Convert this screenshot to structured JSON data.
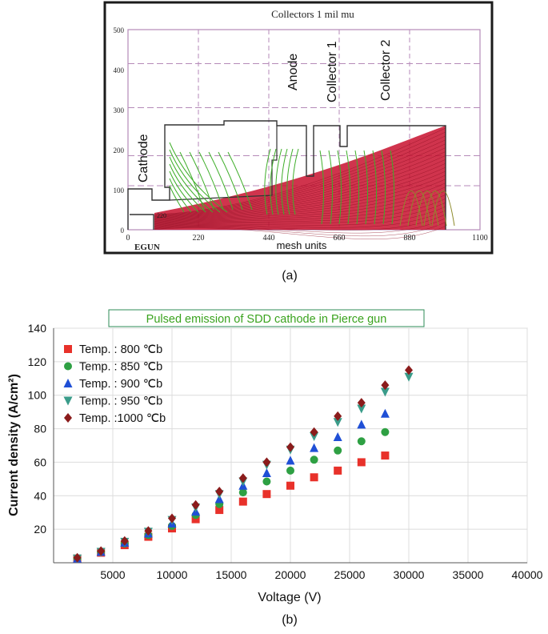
{
  "panel_a": {
    "title": "Collectors 1 mil mu",
    "panel_label": "(a)",
    "program_label": "EGUN",
    "xlabel": "mesh units",
    "x_ticks": [
      "0",
      "220",
      "440",
      "660",
      "880",
      "1100"
    ],
    "y_ticks": [
      "0",
      "100",
      "200",
      "300",
      "400",
      "500"
    ],
    "region_labels": {
      "cathode": "Cathode",
      "anode": "Anode",
      "collector1": "Collector 1",
      "collector2": "Collector 2"
    },
    "inner_marker": "220",
    "colors": {
      "beam": "#c8102e",
      "equipotential": "#3fae2a",
      "grid": "#b58ab8",
      "frame": "#222222"
    }
  },
  "panel_b": {
    "panel_label": "(b)",
    "legend_box_color": "#2e8b57",
    "title_color": "#3aa31e"
  },
  "chart_data": {
    "type": "scatter",
    "title": "Pulsed emission of SDD cathode in Pierce gun",
    "xlabel": "Voltage (V)",
    "ylabel": "Current density (A/cm²)",
    "xlim": [
      0,
      40000
    ],
    "ylim": [
      0,
      140
    ],
    "x_ticks": [
      5000,
      10000,
      15000,
      20000,
      25000,
      30000,
      35000,
      40000
    ],
    "y_ticks": [
      20,
      40,
      60,
      80,
      100,
      120,
      140
    ],
    "grid": true,
    "legend_position": "top-left",
    "series": [
      {
        "name": "Temp. : 800 ℃b",
        "marker": "square",
        "color": "#e8312a",
        "x": [
          2000,
          4000,
          6000,
          8000,
          10000,
          12000,
          14000,
          16000,
          18000,
          20000,
          22000,
          24000,
          26000,
          28000
        ],
        "y": [
          2.5,
          6,
          10.5,
          15.5,
          20.5,
          26,
          31.5,
          36.5,
          41,
          46,
          51,
          55,
          60,
          64
        ]
      },
      {
        "name": "Temp. : 850 ℃b",
        "marker": "circle",
        "color": "#2ea043",
        "x": [
          2000,
          4000,
          6000,
          8000,
          10000,
          12000,
          14000,
          16000,
          18000,
          20000,
          22000,
          24000,
          26000,
          28000
        ],
        "y": [
          2.5,
          6.5,
          11.5,
          16.5,
          22,
          28.5,
          35,
          42,
          48.5,
          55,
          61.5,
          67,
          72.5,
          78
        ]
      },
      {
        "name": "Temp. : 900 ℃b",
        "marker": "triangle-up",
        "color": "#1f4fd6",
        "x": [
          2000,
          4000,
          6000,
          8000,
          10000,
          12000,
          14000,
          16000,
          18000,
          20000,
          22000,
          24000,
          26000,
          28000
        ],
        "y": [
          2.5,
          6.5,
          12,
          17.5,
          23.5,
          30.5,
          38,
          46,
          53.5,
          61,
          68.5,
          75,
          82.5,
          89
        ]
      },
      {
        "name": "Temp. : 950 ℃b",
        "marker": "triangle-down",
        "color": "#3a9c8a",
        "x": [
          2000,
          4000,
          6000,
          8000,
          10000,
          12000,
          14000,
          16000,
          18000,
          20000,
          22000,
          24000,
          26000,
          28000,
          30000
        ],
        "y": [
          2.5,
          6.5,
          12.5,
          18.5,
          25.5,
          33,
          41,
          48.5,
          58.5,
          67.5,
          75.5,
          84,
          92,
          102,
          111
        ]
      },
      {
        "name": "Temp. :1000 ℃b",
        "marker": "diamond",
        "color": "#8b1c1c",
        "x": [
          2000,
          4000,
          6000,
          8000,
          10000,
          12000,
          14000,
          16000,
          18000,
          20000,
          22000,
          24000,
          26000,
          28000,
          30000
        ],
        "y": [
          3,
          7,
          13,
          19,
          26.5,
          34.5,
          42.5,
          50.5,
          60,
          69,
          78,
          87.5,
          95.5,
          106,
          115
        ]
      }
    ]
  }
}
